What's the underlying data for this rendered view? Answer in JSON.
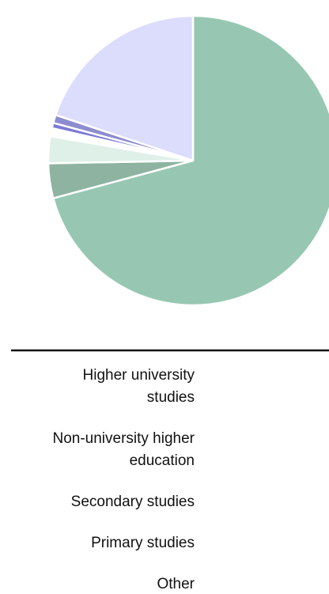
{
  "chart_data": {
    "type": "pie",
    "title": "",
    "slices": [
      {
        "label": "Higher university studies",
        "value": 70.8,
        "color": "#97c7b2"
      },
      {
        "label": "Non-university higher education",
        "value": 3.9,
        "color": "#8eb4a1"
      },
      {
        "label": "Secondary studies",
        "value": 3.0,
        "color": "#dff0e8"
      },
      {
        "label": "Primary studies",
        "value": 0.9,
        "color": "#ffffff"
      },
      {
        "label": "Other",
        "value": 0.6,
        "color": "#7b79d6"
      },
      {
        "label": "",
        "value": 0.9,
        "color": "#8e8cd0"
      },
      {
        "label": "",
        "value": 19.9,
        "color": "#dcdcfd"
      }
    ],
    "legend": {
      "position": "bottom",
      "entries": [
        {
          "lines": [
            "Higher university",
            "studies"
          ]
        },
        {
          "lines": [
            "Non-university higher",
            "education"
          ]
        },
        {
          "lines": [
            "Secondary studies"
          ]
        },
        {
          "lines": [
            "Primary studies"
          ]
        },
        {
          "lines": [
            "Other"
          ]
        }
      ]
    }
  }
}
